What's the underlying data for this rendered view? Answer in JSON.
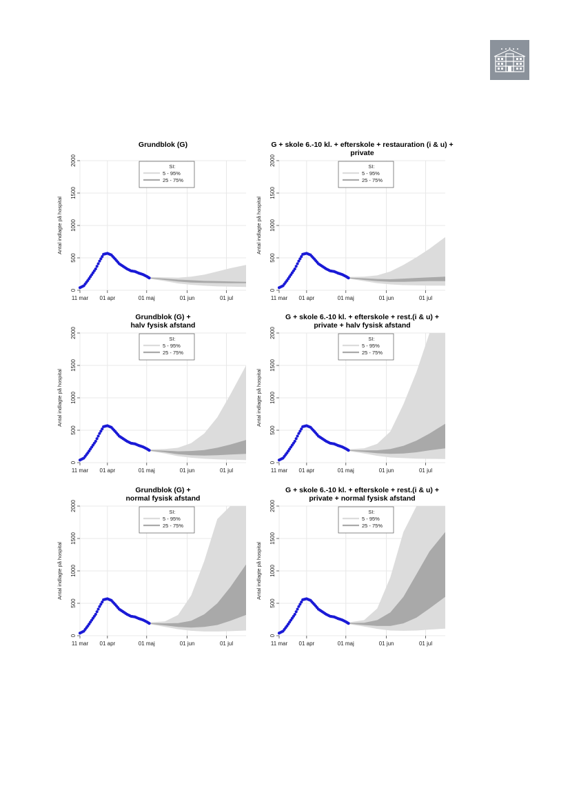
{
  "logo": {
    "icon": "building-icon"
  },
  "colors": {
    "observed": "#1a1ad6",
    "band_outer": "#dcdcdc",
    "band_inner": "#a9a9a9",
    "grid": "#e8e8e8"
  },
  "chart_data": [
    {
      "type": "area",
      "title_lines": [
        "Grundblok (G)"
      ],
      "ylabel": "Antal indlagte på hospital",
      "ylim": [
        0,
        2000
      ],
      "yticks": [
        0,
        500,
        1000,
        1500,
        2000
      ],
      "xlim": [
        0,
        127
      ],
      "xticks": [
        {
          "day": 0,
          "label": "11 mar"
        },
        {
          "day": 21,
          "label": "01 apr"
        },
        {
          "day": 51,
          "label": "01 maj"
        },
        {
          "day": 82,
          "label": "01 jun"
        },
        {
          "day": 112,
          "label": "01 jul"
        }
      ],
      "legend": {
        "title": "SI:",
        "items": [
          "5 - 95%",
          "25 - 75%"
        ],
        "position": "top-center"
      },
      "observed_x": [
        0,
        3,
        6,
        9,
        12,
        15,
        18,
        21,
        24,
        27,
        30,
        33,
        36,
        39,
        42,
        45,
        48,
        51,
        53
      ],
      "observed_y": [
        40,
        70,
        150,
        240,
        330,
        450,
        555,
        570,
        545,
        480,
        410,
        370,
        330,
        300,
        290,
        265,
        245,
        215,
        190
      ],
      "forecast_x": [
        53,
        65,
        75,
        85,
        95,
        105,
        115,
        127
      ],
      "p5": [
        180,
        140,
        105,
        85,
        70,
        60,
        55,
        50
      ],
      "p25": [
        185,
        160,
        135,
        120,
        115,
        112,
        110,
        110
      ],
      "p75": [
        195,
        180,
        165,
        155,
        145,
        140,
        135,
        130
      ],
      "p95": [
        205,
        200,
        195,
        210,
        240,
        290,
        340,
        390
      ]
    },
    {
      "type": "area",
      "title_lines": [
        "G + skole 6.-10 kl. + efterskole + restauration (i & u) +",
        "private"
      ],
      "ylabel": "Antal indlagte på hospital",
      "ylim": [
        0,
        2000
      ],
      "yticks": [
        0,
        500,
        1000,
        1500,
        2000
      ],
      "xlim": [
        0,
        127
      ],
      "xticks": [
        {
          "day": 0,
          "label": "11 mar"
        },
        {
          "day": 21,
          "label": "01 apr"
        },
        {
          "day": 51,
          "label": "01 maj"
        },
        {
          "day": 82,
          "label": "01 jun"
        },
        {
          "day": 112,
          "label": "01 jul"
        }
      ],
      "legend": {
        "title": "SI:",
        "items": [
          "5 - 95%",
          "25 - 75%"
        ],
        "position": "top-center"
      },
      "observed_x": [
        0,
        3,
        6,
        9,
        12,
        15,
        18,
        21,
        24,
        27,
        30,
        33,
        36,
        39,
        42,
        45,
        48,
        51,
        53
      ],
      "observed_y": [
        40,
        70,
        150,
        240,
        330,
        450,
        555,
        570,
        545,
        480,
        410,
        370,
        330,
        300,
        290,
        265,
        245,
        215,
        190
      ],
      "forecast_x": [
        53,
        65,
        75,
        85,
        95,
        105,
        115,
        127
      ],
      "p5": [
        180,
        140,
        110,
        90,
        80,
        75,
        72,
        70
      ],
      "p25": [
        185,
        160,
        140,
        130,
        130,
        135,
        140,
        140
      ],
      "p75": [
        195,
        185,
        175,
        170,
        180,
        190,
        200,
        210
      ],
      "p95": [
        205,
        210,
        230,
        290,
        390,
        510,
        640,
        820
      ]
    },
    {
      "type": "area",
      "title_lines": [
        "Grundblok (G) +",
        "halv fysisk afstand"
      ],
      "ylabel": "Antal indlagte på hospital",
      "ylim": [
        0,
        2000
      ],
      "yticks": [
        0,
        500,
        1000,
        1500,
        2000
      ],
      "xlim": [
        0,
        127
      ],
      "xticks": [
        {
          "day": 0,
          "label": "11 mar"
        },
        {
          "day": 21,
          "label": "01 apr"
        },
        {
          "day": 51,
          "label": "01 maj"
        },
        {
          "day": 82,
          "label": "01 jun"
        },
        {
          "day": 112,
          "label": "01 jul"
        }
      ],
      "legend": {
        "title": "SI:",
        "items": [
          "5 - 95%",
          "25 - 75%"
        ],
        "position": "top-center"
      },
      "observed_x": [
        0,
        3,
        6,
        9,
        12,
        15,
        18,
        21,
        24,
        27,
        30,
        33,
        36,
        39,
        42,
        45,
        48,
        51,
        53
      ],
      "observed_y": [
        40,
        70,
        150,
        240,
        330,
        450,
        555,
        570,
        545,
        480,
        410,
        370,
        330,
        300,
        290,
        265,
        245,
        215,
        190
      ],
      "forecast_x": [
        53,
        65,
        75,
        85,
        95,
        105,
        115,
        127
      ],
      "p5": [
        180,
        140,
        100,
        75,
        60,
        50,
        45,
        40
      ],
      "p25": [
        185,
        160,
        130,
        115,
        110,
        115,
        125,
        135
      ],
      "p75": [
        195,
        185,
        175,
        180,
        195,
        230,
        280,
        350
      ],
      "p95": [
        205,
        210,
        230,
        300,
        450,
        700,
        1050,
        1500
      ]
    },
    {
      "type": "area",
      "title_lines": [
        "G + skole 6.-10 kl. + efterskole + rest.(i & u) +",
        "private + halv fysisk afstand"
      ],
      "ylabel": "Antal indlagte på hospital",
      "ylim": [
        0,
        2000
      ],
      "yticks": [
        0,
        500,
        1000,
        1500,
        2000
      ],
      "xlim": [
        0,
        127
      ],
      "xticks": [
        {
          "day": 0,
          "label": "11 mar"
        },
        {
          "day": 21,
          "label": "01 apr"
        },
        {
          "day": 51,
          "label": "01 maj"
        },
        {
          "day": 82,
          "label": "01 jun"
        },
        {
          "day": 112,
          "label": "01 jul"
        }
      ],
      "legend": {
        "title": "SI:",
        "items": [
          "5 - 95%",
          "25 - 75%"
        ],
        "position": "top-center"
      },
      "observed_x": [
        0,
        3,
        6,
        9,
        12,
        15,
        18,
        21,
        24,
        27,
        30,
        33,
        36,
        39,
        42,
        45,
        48,
        51,
        53
      ],
      "observed_y": [
        40,
        70,
        150,
        240,
        330,
        450,
        555,
        570,
        545,
        480,
        410,
        370,
        330,
        300,
        290,
        265,
        245,
        215,
        190
      ],
      "forecast_x": [
        53,
        65,
        75,
        85,
        95,
        105,
        115,
        127
      ],
      "p5": [
        180,
        140,
        105,
        80,
        70,
        62,
        58,
        55
      ],
      "p25": [
        185,
        165,
        145,
        135,
        140,
        160,
        190,
        220
      ],
      "p75": [
        195,
        190,
        190,
        210,
        260,
        340,
        450,
        600
      ],
      "p95": [
        205,
        220,
        290,
        480,
        900,
        1400,
        2000,
        2000
      ]
    },
    {
      "type": "area",
      "title_lines": [
        "Grundblok (G) +",
        "normal fysisk afstand"
      ],
      "ylabel": "Antal indlagte på hospital",
      "ylim": [
        0,
        2000
      ],
      "yticks": [
        0,
        500,
        1000,
        1500,
        2000
      ],
      "xlim": [
        0,
        127
      ],
      "xticks": [
        {
          "day": 0,
          "label": "11 mar"
        },
        {
          "day": 21,
          "label": "01 apr"
        },
        {
          "day": 51,
          "label": "01 maj"
        },
        {
          "day": 82,
          "label": "01 jun"
        },
        {
          "day": 112,
          "label": "01 jul"
        }
      ],
      "legend": {
        "title": "SI:",
        "items": [
          "5 - 95%",
          "25 - 75%"
        ],
        "position": "top-center"
      },
      "observed_x": [
        0,
        3,
        6,
        9,
        12,
        15,
        18,
        21,
        24,
        27,
        30,
        33,
        36,
        39,
        42,
        45,
        48,
        51,
        53
      ],
      "observed_y": [
        40,
        70,
        150,
        240,
        330,
        450,
        555,
        570,
        545,
        480,
        410,
        370,
        330,
        300,
        290,
        265,
        245,
        215,
        190
      ],
      "forecast_x": [
        53,
        65,
        75,
        85,
        95,
        105,
        115,
        127
      ],
      "p5": [
        180,
        135,
        100,
        75,
        65,
        65,
        70,
        80
      ],
      "p25": [
        185,
        160,
        135,
        125,
        135,
        165,
        230,
        320
      ],
      "p75": [
        195,
        190,
        195,
        230,
        330,
        500,
        750,
        1100
      ],
      "p95": [
        205,
        220,
        320,
        620,
        1150,
        1800,
        2000,
        2000
      ]
    },
    {
      "type": "area",
      "title_lines": [
        "G + skole 6.-10 kl. + efterskole + rest.(i & u) +",
        "private + normal fysisk afstand"
      ],
      "ylabel": "Antal indlagte på hospital",
      "ylim": [
        0,
        2000
      ],
      "yticks": [
        0,
        500,
        1000,
        1500,
        2000
      ],
      "xlim": [
        0,
        127
      ],
      "xticks": [
        {
          "day": 0,
          "label": "11 mar"
        },
        {
          "day": 21,
          "label": "01 apr"
        },
        {
          "day": 51,
          "label": "01 maj"
        },
        {
          "day": 82,
          "label": "01 jun"
        },
        {
          "day": 112,
          "label": "01 jul"
        }
      ],
      "legend": {
        "title": "SI:",
        "items": [
          "5 - 95%",
          "25 - 75%"
        ],
        "position": "top-center"
      },
      "observed_x": [
        0,
        3,
        6,
        9,
        12,
        15,
        18,
        21,
        24,
        27,
        30,
        33,
        36,
        39,
        42,
        45,
        48,
        51,
        53
      ],
      "observed_y": [
        40,
        70,
        150,
        240,
        330,
        450,
        555,
        570,
        545,
        480,
        410,
        370,
        330,
        300,
        290,
        265,
        245,
        215,
        190
      ],
      "forecast_x": [
        53,
        65,
        75,
        85,
        95,
        105,
        115,
        127
      ],
      "p5": [
        180,
        140,
        105,
        80,
        75,
        80,
        95,
        110
      ],
      "p25": [
        185,
        165,
        150,
        150,
        190,
        280,
        420,
        600
      ],
      "p75": [
        195,
        200,
        240,
        360,
        600,
        950,
        1300,
        1600
      ],
      "p95": [
        205,
        240,
        420,
        900,
        1600,
        2000,
        2000,
        2000
      ]
    }
  ]
}
